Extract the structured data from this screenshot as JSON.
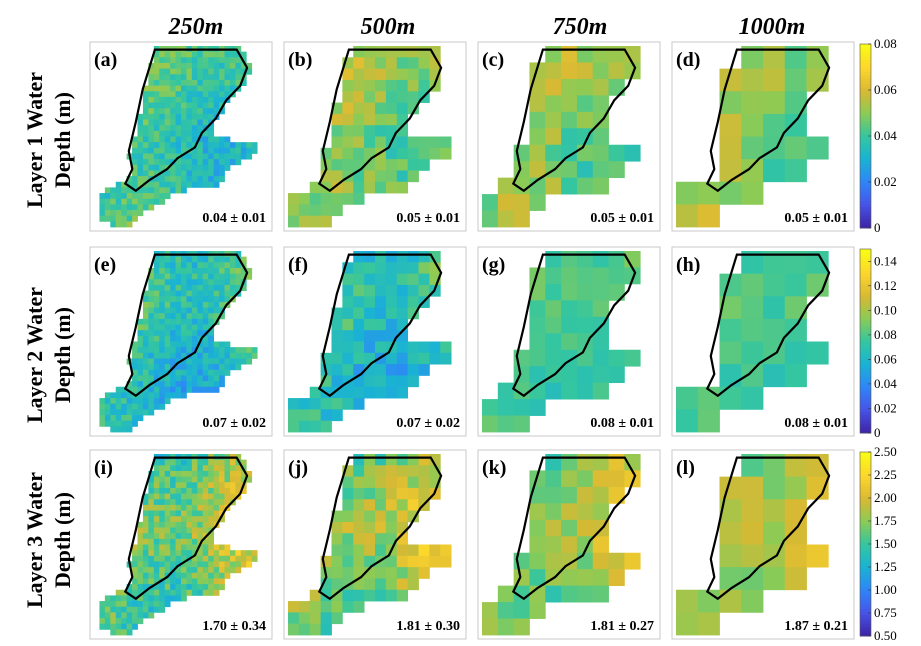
{
  "chart_data": {
    "type": "heatmap",
    "columns": [
      "250m",
      "500m",
      "750m",
      "1000m"
    ],
    "rows": [
      {
        "title_line1": "Layer 1 Water",
        "title_line2": "Depth (m)",
        "colorbar": {
          "min": 0,
          "max": 0.08,
          "ticks": [
            "0",
            "0.02",
            "0.04",
            "0.06",
            "0.08"
          ]
        },
        "panels": [
          {
            "label": "(a)",
            "stat": "0.04 ± 0.01",
            "mean": 0.04,
            "std": 0.01
          },
          {
            "label": "(b)",
            "stat": "0.05 ± 0.01",
            "mean": 0.05,
            "std": 0.01
          },
          {
            "label": "(c)",
            "stat": "0.05 ± 0.01",
            "mean": 0.05,
            "std": 0.01
          },
          {
            "label": "(d)",
            "stat": "0.05 ± 0.01",
            "mean": 0.05,
            "std": 0.01
          }
        ]
      },
      {
        "title_line1": "Layer 2 Water",
        "title_line2": "Depth (m)",
        "colorbar": {
          "min": 0,
          "max": 0.15,
          "ticks": [
            "0",
            "0.02",
            "0.04",
            "0.06",
            "0.08",
            "0.10",
            "0.12",
            "0.14"
          ]
        },
        "panels": [
          {
            "label": "(e)",
            "stat": "0.07 ± 0.02",
            "mean": 0.07,
            "std": 0.02
          },
          {
            "label": "(f)",
            "stat": "0.07 ± 0.02",
            "mean": 0.07,
            "std": 0.02
          },
          {
            "label": "(g)",
            "stat": "0.08 ± 0.01",
            "mean": 0.08,
            "std": 0.01
          },
          {
            "label": "(h)",
            "stat": "0.08 ± 0.01",
            "mean": 0.08,
            "std": 0.01
          }
        ]
      },
      {
        "title_line1": "Layer 3 Water",
        "title_line2": "Depth (m)",
        "colorbar": {
          "min": 0.5,
          "max": 2.5,
          "ticks": [
            "0.50",
            "0.75",
            "1.00",
            "1.25",
            "1.50",
            "1.75",
            "2.00",
            "2.25",
            "2.50"
          ]
        },
        "panels": [
          {
            "label": "(i)",
            "stat": "1.70 ± 0.34",
            "mean": 1.7,
            "std": 0.34
          },
          {
            "label": "(j)",
            "stat": "1.81 ± 0.30",
            "mean": 1.81,
            "std": 0.3
          },
          {
            "label": "(k)",
            "stat": "1.81 ± 0.27",
            "mean": 1.81,
            "std": 0.27
          },
          {
            "label": "(l)",
            "stat": "1.87 ± 0.21",
            "mean": 1.87,
            "std": 0.21
          }
        ]
      }
    ],
    "grid_cells_per_map": [
      32,
      16,
      11,
      8
    ],
    "colormap": "parula",
    "colormap_stops": [
      "#3e26a8",
      "#4755e8",
      "#2e87f7",
      "#1ab3d3",
      "#35c69f",
      "#8bcb56",
      "#d8b933",
      "#fcd52e",
      "#f9fb15"
    ]
  }
}
